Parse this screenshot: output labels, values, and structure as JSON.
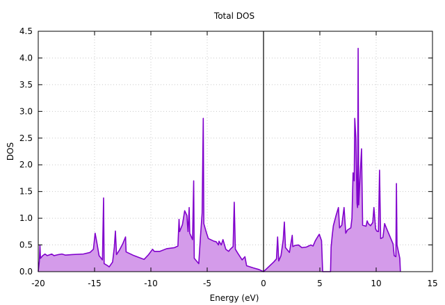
{
  "chart_data": {
    "type": "area",
    "title": "Total DOS",
    "xlabel": "Energy (eV)",
    "ylabel": "DOS",
    "xlim": [
      -20,
      15
    ],
    "ylim": [
      0,
      4.5
    ],
    "xticks": [
      "-20",
      "-15",
      "-10",
      "-5",
      "0",
      "5",
      "10",
      "15"
    ],
    "yticks": [
      "0.0",
      "0.5",
      "1.0",
      "1.5",
      "2.0",
      "2.5",
      "3.0",
      "3.5",
      "4.0",
      "4.5"
    ],
    "grid": true,
    "vertical_line_at": 0,
    "colors": {
      "line": "#8000cc",
      "fill": "#d49bea"
    },
    "series": [
      {
        "points": [
          [
            -20.0,
            0.0
          ],
          [
            -19.9,
            0.2
          ],
          [
            -19.85,
            0.5
          ],
          [
            -19.8,
            0.25
          ],
          [
            -19.6,
            0.3
          ],
          [
            -19.4,
            0.33
          ],
          [
            -19.2,
            0.3
          ],
          [
            -18.8,
            0.33
          ],
          [
            -18.6,
            0.3
          ],
          [
            -18.2,
            0.32
          ],
          [
            -17.9,
            0.33
          ],
          [
            -17.6,
            0.31
          ],
          [
            -17.0,
            0.32
          ],
          [
            -16.0,
            0.33
          ],
          [
            -15.4,
            0.36
          ],
          [
            -15.1,
            0.42
          ],
          [
            -14.95,
            0.72
          ],
          [
            -14.8,
            0.55
          ],
          [
            -14.6,
            0.3
          ],
          [
            -14.3,
            0.22
          ],
          [
            -14.2,
            1.38
          ],
          [
            -14.15,
            0.15
          ],
          [
            -13.9,
            0.12
          ],
          [
            -13.7,
            0.09
          ],
          [
            -13.4,
            0.18
          ],
          [
            -13.25,
            0.45
          ],
          [
            -13.15,
            0.76
          ],
          [
            -13.05,
            0.32
          ],
          [
            -12.8,
            0.4
          ],
          [
            -12.5,
            0.52
          ],
          [
            -12.25,
            0.65
          ],
          [
            -12.2,
            0.37
          ],
          [
            -11.5,
            0.3
          ],
          [
            -10.6,
            0.23
          ],
          [
            -10.2,
            0.32
          ],
          [
            -9.85,
            0.42
          ],
          [
            -9.7,
            0.38
          ],
          [
            -9.2,
            0.38
          ],
          [
            -8.6,
            0.43
          ],
          [
            -7.9,
            0.45
          ],
          [
            -7.7,
            0.47
          ],
          [
            -7.6,
            0.48
          ],
          [
            -7.5,
            0.98
          ],
          [
            -7.45,
            0.75
          ],
          [
            -7.2,
            0.88
          ],
          [
            -7.0,
            1.14
          ],
          [
            -6.8,
            1.05
          ],
          [
            -6.75,
            0.88
          ],
          [
            -6.7,
            0.75
          ],
          [
            -6.6,
            1.2
          ],
          [
            -6.55,
            0.72
          ],
          [
            -6.3,
            0.6
          ],
          [
            -6.2,
            1.7
          ],
          [
            -6.15,
            0.25
          ],
          [
            -5.75,
            0.15
          ],
          [
            -5.6,
            0.65
          ],
          [
            -5.45,
            1.1
          ],
          [
            -5.35,
            2.87
          ],
          [
            -5.3,
            0.9
          ],
          [
            -5.1,
            0.75
          ],
          [
            -4.9,
            0.62
          ],
          [
            -4.4,
            0.57
          ],
          [
            -4.2,
            0.56
          ],
          [
            -4.0,
            0.5
          ],
          [
            -3.95,
            0.57
          ],
          [
            -3.75,
            0.5
          ],
          [
            -3.6,
            0.6
          ],
          [
            -3.35,
            0.42
          ],
          [
            -3.1,
            0.38
          ],
          [
            -2.95,
            0.42
          ],
          [
            -2.7,
            0.47
          ],
          [
            -2.6,
            1.3
          ],
          [
            -2.5,
            0.42
          ],
          [
            -2.3,
            0.35
          ],
          [
            -1.9,
            0.22
          ],
          [
            -1.65,
            0.28
          ],
          [
            -1.5,
            0.11
          ],
          [
            -0.9,
            0.07
          ],
          [
            -0.4,
            0.04
          ],
          [
            0.0,
            0.0
          ],
          [
            0.9,
            0.18
          ],
          [
            1.15,
            0.24
          ],
          [
            1.25,
            0.65
          ],
          [
            1.35,
            0.2
          ],
          [
            1.55,
            0.3
          ],
          [
            1.75,
            0.6
          ],
          [
            1.85,
            0.93
          ],
          [
            1.95,
            0.45
          ],
          [
            2.3,
            0.36
          ],
          [
            2.55,
            0.68
          ],
          [
            2.6,
            0.47
          ],
          [
            2.8,
            0.49
          ],
          [
            3.1,
            0.5
          ],
          [
            3.4,
            0.45
          ],
          [
            3.8,
            0.46
          ],
          [
            4.2,
            0.5
          ],
          [
            4.4,
            0.48
          ],
          [
            4.6,
            0.58
          ],
          [
            4.8,
            0.65
          ],
          [
            4.95,
            0.7
          ],
          [
            5.15,
            0.58
          ],
          [
            5.25,
            0.0
          ],
          [
            5.95,
            0.0
          ],
          [
            6.0,
            0.46
          ],
          [
            6.1,
            0.68
          ],
          [
            6.2,
            0.86
          ],
          [
            6.45,
            1.06
          ],
          [
            6.65,
            1.2
          ],
          [
            6.75,
            0.82
          ],
          [
            6.95,
            0.87
          ],
          [
            7.15,
            1.2
          ],
          [
            7.3,
            0.72
          ],
          [
            7.45,
            0.78
          ],
          [
            7.6,
            0.8
          ],
          [
            7.75,
            0.82
          ],
          [
            7.85,
            1.0
          ],
          [
            7.95,
            1.85
          ],
          [
            8.05,
            1.7
          ],
          [
            8.1,
            2.87
          ],
          [
            8.2,
            2.5
          ],
          [
            8.3,
            1.28
          ],
          [
            8.35,
            1.2
          ],
          [
            8.4,
            4.18
          ],
          [
            8.45,
            1.25
          ],
          [
            8.6,
            1.9
          ],
          [
            8.7,
            2.3
          ],
          [
            8.8,
            0.87
          ],
          [
            9.1,
            0.85
          ],
          [
            9.2,
            0.95
          ],
          [
            9.3,
            0.9
          ],
          [
            9.5,
            0.86
          ],
          [
            9.7,
            0.92
          ],
          [
            9.8,
            1.2
          ],
          [
            9.95,
            0.8
          ],
          [
            10.05,
            0.76
          ],
          [
            10.2,
            0.75
          ],
          [
            10.3,
            1.9
          ],
          [
            10.4,
            0.62
          ],
          [
            10.6,
            0.64
          ],
          [
            10.75,
            0.9
          ],
          [
            10.9,
            0.82
          ],
          [
            11.5,
            0.52
          ],
          [
            11.6,
            0.3
          ],
          [
            11.75,
            0.28
          ],
          [
            11.8,
            1.65
          ],
          [
            11.85,
            0.5
          ],
          [
            12.1,
            0.25
          ],
          [
            12.15,
            0.0
          ]
        ]
      }
    ]
  }
}
